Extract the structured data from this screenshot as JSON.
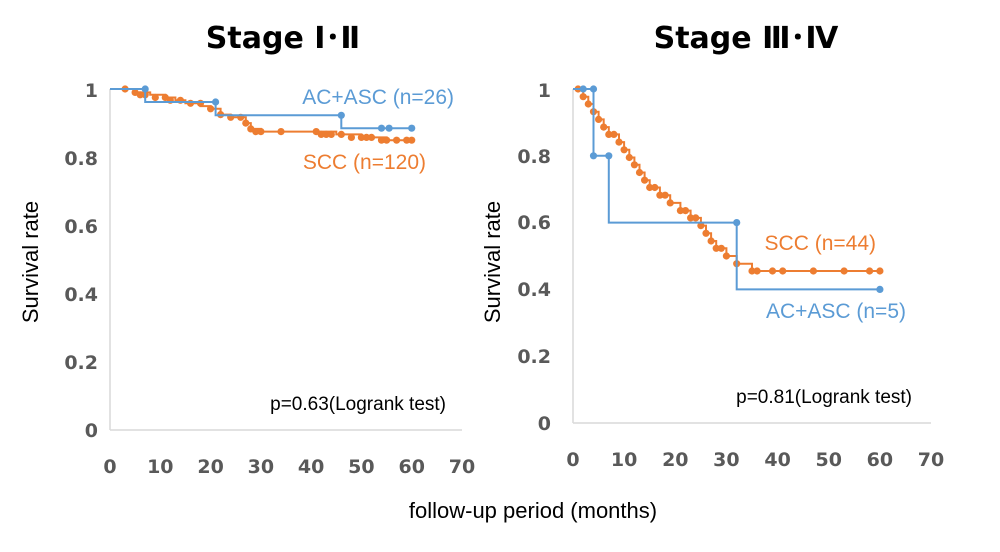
{
  "colors": {
    "ac_asc": "#5b9bd5",
    "scc": "#ed7d31",
    "axis": "#d9d9d9",
    "tick": "#595959"
  },
  "common": {
    "xlabel": "follow-up period (months)"
  },
  "chart_data": [
    {
      "type": "line",
      "title": "Stage Ⅰ･Ⅱ",
      "ylabel": "Survival rate",
      "xlim": [
        0,
        70
      ],
      "ylim": [
        0,
        1
      ],
      "x_ticks": [
        "0",
        "10",
        "20",
        "30",
        "40",
        "50",
        "60",
        "70"
      ],
      "y_ticks": [
        "0",
        "0.2",
        "0.4",
        "0.6",
        "0.8",
        "1"
      ],
      "annotation": "p=0.63(Logrank test)",
      "series": [
        {
          "name": "AC+ASC (n=26)",
          "color": "#5b9bd5",
          "step_points": [
            [
              0,
              1.0
            ],
            [
              7,
              0.962
            ],
            [
              21,
              0.923
            ],
            [
              46,
              0.885
            ],
            [
              60,
              0.885
            ]
          ],
          "censor_marks": [
            [
              7,
              1.0
            ],
            [
              21,
              0.962
            ],
            [
              46,
              0.923
            ],
            [
              54,
              0.885
            ],
            [
              55.5,
              0.885
            ],
            [
              60,
              0.885
            ]
          ]
        },
        {
          "name": "SCC (n=120)",
          "color": "#ed7d31",
          "step_points": [
            [
              0,
              1.0
            ],
            [
              5,
              0.99
            ],
            [
              8,
              0.983
            ],
            [
              11,
              0.975
            ],
            [
              13,
              0.967
            ],
            [
              15,
              0.958
            ],
            [
              18,
              0.95
            ],
            [
              20,
              0.942
            ],
            [
              22,
              0.925
            ],
            [
              24,
              0.917
            ],
            [
              27,
              0.9
            ],
            [
              28,
              0.883
            ],
            [
              30,
              0.875
            ],
            [
              45,
              0.867
            ],
            [
              50,
              0.858
            ],
            [
              55,
              0.85
            ],
            [
              60,
              0.85
            ]
          ],
          "censor_marks": [
            [
              3,
              1.0
            ],
            [
              5,
              0.99
            ],
            [
              6,
              0.983
            ],
            [
              7,
              0.983
            ],
            [
              9,
              0.975
            ],
            [
              11,
              0.975
            ],
            [
              12,
              0.967
            ],
            [
              14,
              0.967
            ],
            [
              16,
              0.958
            ],
            [
              18,
              0.958
            ],
            [
              20,
              0.942
            ],
            [
              22,
              0.925
            ],
            [
              24,
              0.917
            ],
            [
              26,
              0.917
            ],
            [
              27,
              0.9
            ],
            [
              28,
              0.883
            ],
            [
              29,
              0.875
            ],
            [
              30,
              0.875
            ],
            [
              34,
              0.875
            ],
            [
              41,
              0.875
            ],
            [
              42,
              0.867
            ],
            [
              43,
              0.867
            ],
            [
              44,
              0.867
            ],
            [
              46,
              0.867
            ],
            [
              48,
              0.858
            ],
            [
              50,
              0.858
            ],
            [
              51,
              0.858
            ],
            [
              52,
              0.858
            ],
            [
              54,
              0.85
            ],
            [
              55,
              0.85
            ],
            [
              57,
              0.85
            ],
            [
              59,
              0.85
            ],
            [
              60,
              0.85
            ]
          ]
        }
      ]
    },
    {
      "type": "line",
      "title": "Stage Ⅲ･Ⅳ",
      "ylabel": "Survival rate",
      "xlim": [
        0,
        70
      ],
      "ylim": [
        0,
        1
      ],
      "x_ticks": [
        "0",
        "10",
        "20",
        "30",
        "40",
        "50",
        "60",
        "70"
      ],
      "y_ticks": [
        "0",
        "0.2",
        "0.4",
        "0.6",
        "0.8",
        "1"
      ],
      "annotation": "p=0.81(Logrank test)",
      "series": [
        {
          "name": "AC+ASC (n=5)",
          "color": "#5b9bd5",
          "step_points": [
            [
              0,
              1.0
            ],
            [
              4,
              0.8
            ],
            [
              7,
              0.6
            ],
            [
              32,
              0.4
            ],
            [
              60,
              0.4
            ]
          ],
          "censor_marks": [
            [
              2,
              1.0
            ],
            [
              4,
              1.0
            ],
            [
              4,
              0.8
            ],
            [
              7,
              0.8
            ],
            [
              32,
              0.6
            ],
            [
              60,
              0.4
            ]
          ]
        },
        {
          "name": "SCC (n=44)",
          "color": "#ed7d31",
          "step_points": [
            [
              0,
              1.0
            ],
            [
              2,
              0.977
            ],
            [
              3,
              0.955
            ],
            [
              4,
              0.932
            ],
            [
              5,
              0.909
            ],
            [
              6,
              0.886
            ],
            [
              7,
              0.864
            ],
            [
              9,
              0.841
            ],
            [
              10,
              0.818
            ],
            [
              11,
              0.795
            ],
            [
              12,
              0.773
            ],
            [
              13,
              0.75
            ],
            [
              14,
              0.727
            ],
            [
              15,
              0.705
            ],
            [
              17,
              0.682
            ],
            [
              19,
              0.659
            ],
            [
              21,
              0.636
            ],
            [
              23,
              0.614
            ],
            [
              25,
              0.591
            ],
            [
              26,
              0.568
            ],
            [
              27,
              0.545
            ],
            [
              28,
              0.523
            ],
            [
              30,
              0.5
            ],
            [
              32,
              0.477
            ],
            [
              35,
              0.455
            ],
            [
              60,
              0.455
            ]
          ],
          "censor_marks": [
            [
              1,
              1.0
            ],
            [
              2,
              0.977
            ],
            [
              3,
              0.955
            ],
            [
              4,
              0.932
            ],
            [
              5,
              0.909
            ],
            [
              6,
              0.886
            ],
            [
              7,
              0.864
            ],
            [
              8,
              0.864
            ],
            [
              9,
              0.841
            ],
            [
              10,
              0.818
            ],
            [
              11,
              0.795
            ],
            [
              12,
              0.773
            ],
            [
              13,
              0.75
            ],
            [
              14,
              0.727
            ],
            [
              15,
              0.705
            ],
            [
              16,
              0.705
            ],
            [
              17,
              0.682
            ],
            [
              18,
              0.682
            ],
            [
              19,
              0.659
            ],
            [
              21,
              0.636
            ],
            [
              22,
              0.636
            ],
            [
              23,
              0.614
            ],
            [
              24,
              0.614
            ],
            [
              25,
              0.591
            ],
            [
              26,
              0.568
            ],
            [
              27,
              0.545
            ],
            [
              28,
              0.523
            ],
            [
              29,
              0.523
            ],
            [
              30,
              0.5
            ],
            [
              32,
              0.477
            ],
            [
              35,
              0.455
            ],
            [
              36,
              0.455
            ],
            [
              39,
              0.455
            ],
            [
              41,
              0.455
            ],
            [
              47,
              0.455
            ],
            [
              53,
              0.455
            ],
            [
              58,
              0.455
            ],
            [
              60,
              0.455
            ]
          ]
        }
      ]
    }
  ]
}
